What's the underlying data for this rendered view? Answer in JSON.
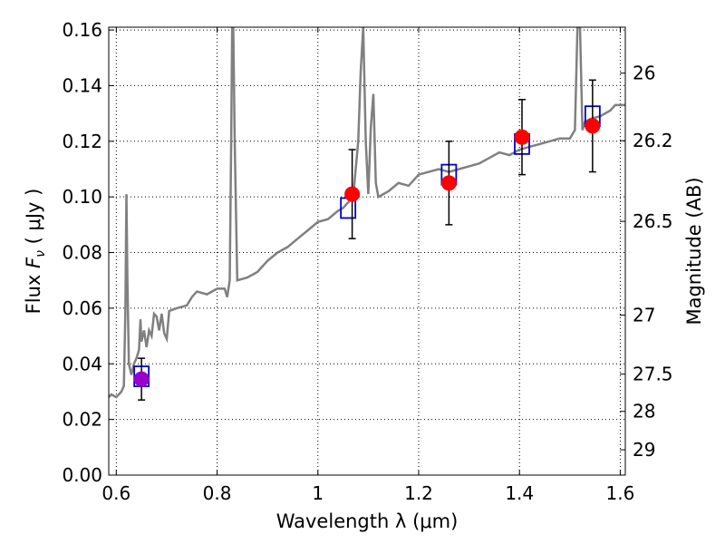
{
  "chart_data": {
    "type": "scatter",
    "xlabel": "Wavelength  λ (μm)",
    "ylabel_text": "Flux ",
    "ylabel_symbol": "F",
    "ylabel_subscript": "ν",
    "ylabel_unit": " ( μJy )",
    "y2label": "Magnitude (AB)",
    "xlim": [
      0.585,
      1.61
    ],
    "ylim": [
      0.0,
      0.161
    ],
    "grid": true,
    "xticks": [
      {
        "value": 0.6,
        "label": "0.6"
      },
      {
        "value": 0.8,
        "label": "0.8"
      },
      {
        "value": 1.0,
        "label": "1"
      },
      {
        "value": 1.2,
        "label": "1.2"
      },
      {
        "value": 1.4,
        "label": "1.4"
      },
      {
        "value": 1.6,
        "label": "1.6"
      }
    ],
    "yticks": [
      {
        "value": 0.0,
        "label": "0.00"
      },
      {
        "value": 0.02,
        "label": "0.02"
      },
      {
        "value": 0.04,
        "label": "0.04"
      },
      {
        "value": 0.06,
        "label": "0.06"
      },
      {
        "value": 0.08,
        "label": "0.08"
      },
      {
        "value": 0.1,
        "label": "0.10"
      },
      {
        "value": 0.12,
        "label": "0.12"
      },
      {
        "value": 0.14,
        "label": "0.14"
      },
      {
        "value": 0.16,
        "label": "0.16"
      }
    ],
    "y2ticks": [
      {
        "label": "26",
        "flux": 0.1445
      },
      {
        "label": "26.2",
        "flux": 0.1202
      },
      {
        "label": "26.5",
        "flux": 0.0912
      },
      {
        "label": "27",
        "flux": 0.0575
      },
      {
        "label": "27.5",
        "flux": 0.0363
      },
      {
        "label": "28",
        "flux": 0.0229
      },
      {
        "label": "29",
        "flux": 0.0091
      }
    ],
    "model_spectrum": {
      "color": "#808080",
      "points": [
        [
          0.585,
          0.028
        ],
        [
          0.59,
          0.029
        ],
        [
          0.6,
          0.028
        ],
        [
          0.61,
          0.03
        ],
        [
          0.615,
          0.032
        ],
        [
          0.618,
          0.06
        ],
        [
          0.62,
          0.101
        ],
        [
          0.622,
          0.07
        ],
        [
          0.625,
          0.04
        ],
        [
          0.63,
          0.036
        ],
        [
          0.635,
          0.04
        ],
        [
          0.64,
          0.042
        ],
        [
          0.645,
          0.045
        ],
        [
          0.648,
          0.056
        ],
        [
          0.65,
          0.048
        ],
        [
          0.655,
          0.052
        ],
        [
          0.66,
          0.046
        ],
        [
          0.665,
          0.052
        ],
        [
          0.67,
          0.05
        ],
        [
          0.675,
          0.058
        ],
        [
          0.68,
          0.057
        ],
        [
          0.685,
          0.052
        ],
        [
          0.69,
          0.058
        ],
        [
          0.695,
          0.051
        ],
        [
          0.7,
          0.049
        ],
        [
          0.705,
          0.059
        ],
        [
          0.72,
          0.06
        ],
        [
          0.74,
          0.061
        ],
        [
          0.75,
          0.064
        ],
        [
          0.76,
          0.066
        ],
        [
          0.78,
          0.065
        ],
        [
          0.8,
          0.067
        ],
        [
          0.815,
          0.067
        ],
        [
          0.82,
          0.064
        ],
        [
          0.825,
          0.07
        ],
        [
          0.828,
          0.12
        ],
        [
          0.83,
          0.161
        ],
        [
          0.832,
          0.161
        ],
        [
          0.835,
          0.12
        ],
        [
          0.84,
          0.07
        ],
        [
          0.86,
          0.071
        ],
        [
          0.88,
          0.073
        ],
        [
          0.9,
          0.077
        ],
        [
          0.92,
          0.08
        ],
        [
          0.94,
          0.082
        ],
        [
          0.96,
          0.085
        ],
        [
          0.98,
          0.088
        ],
        [
          1.0,
          0.091
        ],
        [
          1.02,
          0.092
        ],
        [
          1.04,
          0.095
        ],
        [
          1.05,
          0.096
        ],
        [
          1.06,
          0.098
        ],
        [
          1.07,
          0.1
        ],
        [
          1.075,
          0.11
        ],
        [
          1.08,
          0.12
        ],
        [
          1.085,
          0.145
        ],
        [
          1.09,
          0.161
        ],
        [
          1.095,
          0.12
        ],
        [
          1.1,
          0.101
        ],
        [
          1.105,
          0.125
        ],
        [
          1.11,
          0.137
        ],
        [
          1.115,
          0.105
        ],
        [
          1.12,
          0.1
        ],
        [
          1.14,
          0.102
        ],
        [
          1.16,
          0.105
        ],
        [
          1.18,
          0.104
        ],
        [
          1.2,
          0.108
        ],
        [
          1.22,
          0.109
        ],
        [
          1.24,
          0.11
        ],
        [
          1.26,
          0.109
        ],
        [
          1.28,
          0.11
        ],
        [
          1.3,
          0.111
        ],
        [
          1.32,
          0.112
        ],
        [
          1.34,
          0.114
        ],
        [
          1.36,
          0.116
        ],
        [
          1.38,
          0.115
        ],
        [
          1.4,
          0.117
        ],
        [
          1.42,
          0.118
        ],
        [
          1.44,
          0.119
        ],
        [
          1.46,
          0.12
        ],
        [
          1.48,
          0.121
        ],
        [
          1.5,
          0.121
        ],
        [
          1.51,
          0.124
        ],
        [
          1.515,
          0.161
        ],
        [
          1.52,
          0.161
        ],
        [
          1.525,
          0.124
        ],
        [
          1.53,
          0.127
        ],
        [
          1.54,
          0.128
        ],
        [
          1.56,
          0.129
        ],
        [
          1.58,
          0.131
        ],
        [
          1.59,
          0.133
        ],
        [
          1.61,
          0.133
        ]
      ]
    },
    "model_photometry": {
      "color": "#0000cc",
      "points": [
        {
          "x": 0.65,
          "y": 0.0355
        },
        {
          "x": 1.06,
          "y": 0.096
        },
        {
          "x": 1.26,
          "y": 0.108
        },
        {
          "x": 1.405,
          "y": 0.119
        },
        {
          "x": 1.545,
          "y": 0.129
        }
      ]
    },
    "observations": [
      {
        "x": 0.65,
        "y": 0.0345,
        "err": 0.0075,
        "color": "#9900cc"
      },
      {
        "x": 1.068,
        "y": 0.101,
        "err": 0.016,
        "color": "#ff0000"
      },
      {
        "x": 1.26,
        "y": 0.105,
        "err": 0.015,
        "color": "#ff0000"
      },
      {
        "x": 1.405,
        "y": 0.1215,
        "err": 0.0135,
        "color": "#ff0000"
      },
      {
        "x": 1.545,
        "y": 0.1255,
        "err": 0.0165,
        "color": "#ff0000"
      }
    ]
  }
}
